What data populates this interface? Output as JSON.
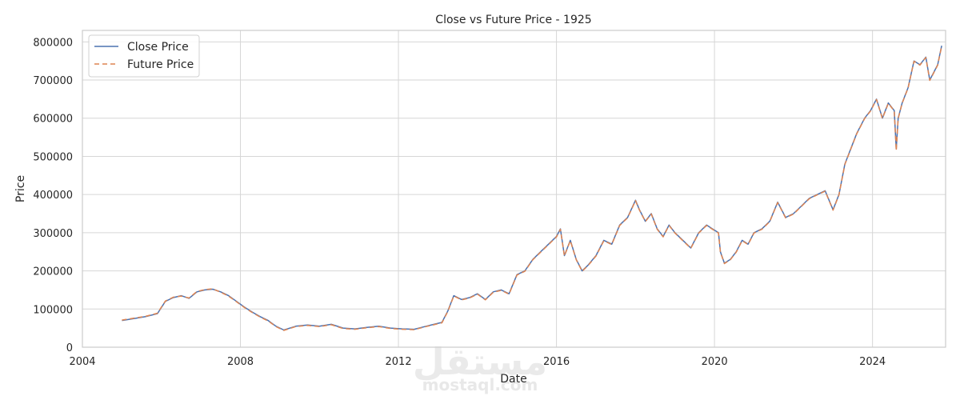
{
  "chart_data": {
    "type": "line",
    "title": "Close vs Future Price - 1925",
    "xlabel": "Date",
    "ylabel": "Price",
    "xlim": [
      2004.0,
      2025.85
    ],
    "ylim": [
      0,
      830000
    ],
    "xticks": [
      2004,
      2008,
      2012,
      2016,
      2020,
      2024
    ],
    "xtick_labels": [
      "2004",
      "2008",
      "2012",
      "2016",
      "2020",
      "2024"
    ],
    "yticks": [
      0,
      100000,
      200000,
      300000,
      400000,
      500000,
      600000,
      700000,
      800000
    ],
    "ytick_labels": [
      "0",
      "100000",
      "200000",
      "300000",
      "400000",
      "500000",
      "600000",
      "700000",
      "800000"
    ],
    "grid": true,
    "legend_position": "top-left",
    "series": [
      {
        "name": "Close Price",
        "color": "#4c72b0",
        "dash": "solid",
        "x": [
          2005.0,
          2005.3,
          2005.6,
          2005.9,
          2006.1,
          2006.3,
          2006.5,
          2006.7,
          2006.9,
          2007.1,
          2007.3,
          2007.5,
          2007.7,
          2007.9,
          2008.1,
          2008.3,
          2008.5,
          2008.7,
          2008.9,
          2009.1,
          2009.4,
          2009.7,
          2010.0,
          2010.3,
          2010.6,
          2010.9,
          2011.2,
          2011.5,
          2011.8,
          2012.1,
          2012.4,
          2012.7,
          2012.9,
          2013.1,
          2013.25,
          2013.4,
          2013.6,
          2013.8,
          2014.0,
          2014.2,
          2014.4,
          2014.6,
          2014.8,
          2015.0,
          2015.2,
          2015.4,
          2015.6,
          2015.8,
          2016.0,
          2016.1,
          2016.2,
          2016.35,
          2016.5,
          2016.65,
          2016.8,
          2017.0,
          2017.2,
          2017.4,
          2017.6,
          2017.8,
          2018.0,
          2018.1,
          2018.25,
          2018.4,
          2018.55,
          2018.7,
          2018.85,
          2019.0,
          2019.2,
          2019.4,
          2019.6,
          2019.8,
          2019.95,
          2020.1,
          2020.15,
          2020.25,
          2020.4,
          2020.55,
          2020.7,
          2020.85,
          2021.0,
          2021.2,
          2021.4,
          2021.6,
          2021.8,
          2022.0,
          2022.2,
          2022.4,
          2022.6,
          2022.8,
          2023.0,
          2023.15,
          2023.3,
          2023.45,
          2023.6,
          2023.8,
          2023.95,
          2024.1,
          2024.25,
          2024.4,
          2024.55,
          2024.6,
          2024.65,
          2024.75,
          2024.9,
          2025.05,
          2025.2,
          2025.35,
          2025.45,
          2025.55,
          2025.65,
          2025.75
        ],
        "values": [
          70000,
          75000,
          80000,
          88000,
          120000,
          130000,
          135000,
          128000,
          145000,
          150000,
          152000,
          145000,
          135000,
          120000,
          105000,
          92000,
          80000,
          70000,
          55000,
          45000,
          55000,
          58000,
          55000,
          60000,
          50000,
          48000,
          52000,
          55000,
          50000,
          48000,
          47000,
          55000,
          60000,
          65000,
          95000,
          135000,
          125000,
          130000,
          140000,
          125000,
          145000,
          150000,
          140000,
          190000,
          200000,
          230000,
          250000,
          270000,
          290000,
          310000,
          240000,
          280000,
          230000,
          200000,
          215000,
          240000,
          280000,
          270000,
          320000,
          340000,
          385000,
          360000,
          330000,
          350000,
          310000,
          290000,
          320000,
          300000,
          280000,
          260000,
          300000,
          320000,
          310000,
          300000,
          250000,
          220000,
          230000,
          250000,
          280000,
          270000,
          300000,
          310000,
          330000,
          380000,
          340000,
          350000,
          370000,
          390000,
          400000,
          410000,
          360000,
          400000,
          480000,
          520000,
          560000,
          600000,
          620000,
          650000,
          600000,
          640000,
          620000,
          520000,
          600000,
          640000,
          680000,
          750000,
          740000,
          760000,
          700000,
          720000,
          740000,
          790000
        ]
      },
      {
        "name": "Future Price",
        "color": "#dd8452",
        "dash": "dashed",
        "x": [
          2005.0,
          2005.3,
          2005.6,
          2005.9,
          2006.1,
          2006.3,
          2006.5,
          2006.7,
          2006.9,
          2007.1,
          2007.3,
          2007.5,
          2007.7,
          2007.9,
          2008.1,
          2008.3,
          2008.5,
          2008.7,
          2008.9,
          2009.1,
          2009.4,
          2009.7,
          2010.0,
          2010.3,
          2010.6,
          2010.9,
          2011.2,
          2011.5,
          2011.8,
          2012.1,
          2012.4,
          2012.7,
          2012.9,
          2013.1,
          2013.25,
          2013.4,
          2013.6,
          2013.8,
          2014.0,
          2014.2,
          2014.4,
          2014.6,
          2014.8,
          2015.0,
          2015.2,
          2015.4,
          2015.6,
          2015.8,
          2016.0,
          2016.1,
          2016.2,
          2016.35,
          2016.5,
          2016.65,
          2016.8,
          2017.0,
          2017.2,
          2017.4,
          2017.6,
          2017.8,
          2018.0,
          2018.1,
          2018.25,
          2018.4,
          2018.55,
          2018.7,
          2018.85,
          2019.0,
          2019.2,
          2019.4,
          2019.6,
          2019.8,
          2019.95,
          2020.1,
          2020.15,
          2020.25,
          2020.4,
          2020.55,
          2020.7,
          2020.85,
          2021.0,
          2021.2,
          2021.4,
          2021.6,
          2021.8,
          2022.0,
          2022.2,
          2022.4,
          2022.6,
          2022.8,
          2023.0,
          2023.15,
          2023.3,
          2023.45,
          2023.6,
          2023.8,
          2023.95,
          2024.1,
          2024.25,
          2024.4,
          2024.55,
          2024.6,
          2024.65,
          2024.75,
          2024.9,
          2025.05,
          2025.2,
          2025.35,
          2025.45,
          2025.55,
          2025.65,
          2025.75
        ],
        "values": [
          71000,
          76000,
          81000,
          89000,
          121000,
          131000,
          134000,
          129000,
          146000,
          151000,
          153000,
          144000,
          134000,
          119000,
          104000,
          91000,
          79000,
          69000,
          54000,
          44000,
          54000,
          57000,
          54000,
          59000,
          49000,
          47000,
          51000,
          54000,
          49000,
          47000,
          46000,
          54000,
          59000,
          64000,
          94000,
          134000,
          124000,
          129000,
          139000,
          124000,
          144000,
          149000,
          139000,
          189000,
          199000,
          229000,
          249000,
          269000,
          289000,
          309000,
          239000,
          279000,
          229000,
          199000,
          214000,
          239000,
          279000,
          269000,
          319000,
          339000,
          384000,
          359000,
          329000,
          349000,
          309000,
          289000,
          319000,
          299000,
          279000,
          259000,
          299000,
          319000,
          309000,
          299000,
          249000,
          219000,
          229000,
          249000,
          279000,
          269000,
          299000,
          309000,
          329000,
          379000,
          339000,
          349000,
          369000,
          389000,
          399000,
          409000,
          359000,
          399000,
          479000,
          519000,
          559000,
          599000,
          619000,
          649000,
          599000,
          639000,
          619000,
          515000,
          599000,
          639000,
          679000,
          749000,
          739000,
          759000,
          699000,
          719000,
          739000,
          789000
        ]
      }
    ]
  },
  "watermark": {
    "arabic": "مستقل",
    "latin": "mostaql.com"
  }
}
